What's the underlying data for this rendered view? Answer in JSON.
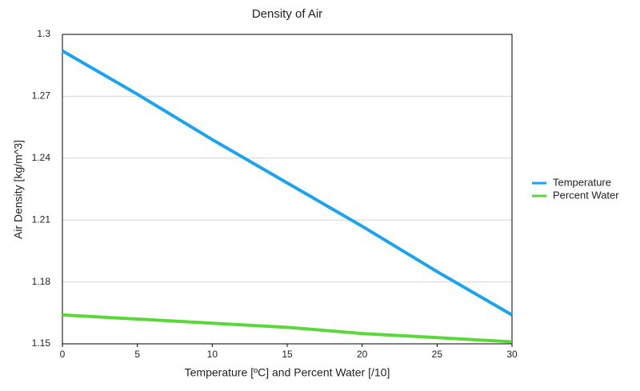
{
  "chart_data": {
    "type": "line",
    "title": "Density of Air",
    "x_label": "Temperature [ºC] and Percent Water [/10]",
    "y_label": "Air Density [kg/m^3]",
    "x": [
      0,
      5,
      10,
      15,
      20,
      25,
      30
    ],
    "series": [
      {
        "name": "Temperature",
        "color": "#1aa3f0",
        "values": [
          1.292,
          1.271,
          1.249,
          1.228,
          1.207,
          1.185,
          1.164
        ]
      },
      {
        "name": "Percent Water",
        "color": "#5bd73a",
        "values": [
          1.164,
          1.162,
          1.16,
          1.158,
          1.155,
          1.153,
          1.151
        ]
      }
    ],
    "xlim": [
      0,
      30
    ],
    "xticks": [
      0,
      5,
      10,
      15,
      20,
      25,
      30
    ],
    "ylim": [
      1.15,
      1.3
    ],
    "yticks": [
      1.15,
      1.18,
      1.21,
      1.24,
      1.27,
      1.3
    ],
    "grid": true,
    "legend": "right"
  }
}
